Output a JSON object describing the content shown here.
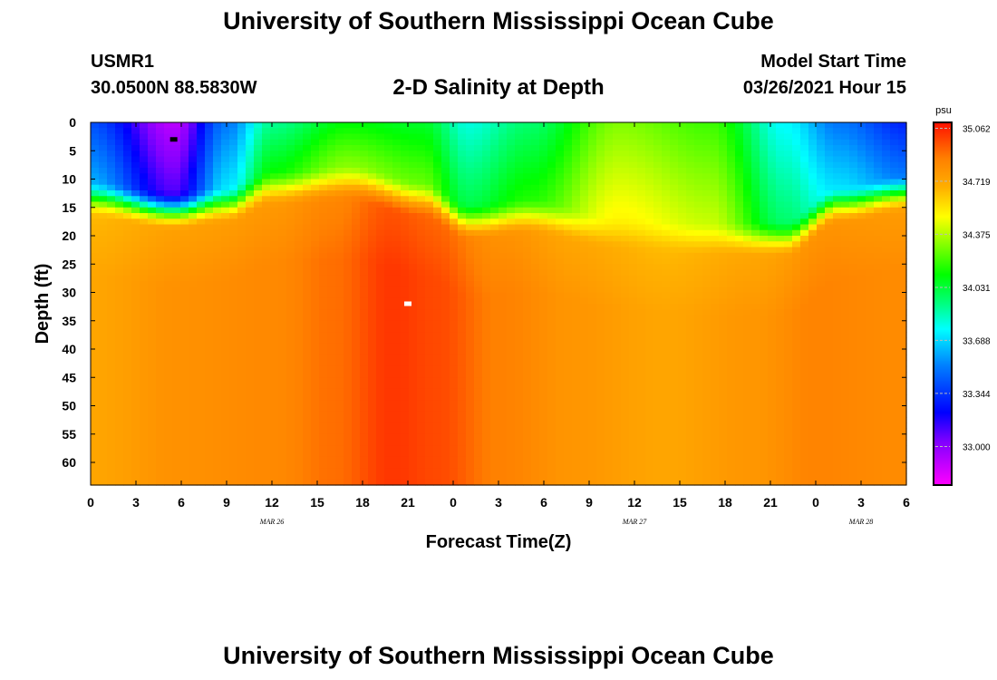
{
  "header": {
    "title": "University of Southern Mississippi Ocean Cube",
    "station_id": "USMR1",
    "station_position": "30.0500N 88.5830W",
    "plot_title": "2-D Salinity at Depth",
    "start_label": "Model Start Time",
    "start_value": "03/26/2021 Hour 15"
  },
  "footer": {
    "title": "University of Southern Mississippi Ocean Cube"
  },
  "chart_data": {
    "type": "heatmap",
    "title": "2-D Salinity at Depth",
    "xlabel": "Forecast Time(Z)",
    "ylabel": "Depth (ft)",
    "x_hours_range": [
      0,
      54
    ],
    "x_tick_labels": [
      "0",
      "3",
      "6",
      "9",
      "12",
      "15",
      "18",
      "21",
      "0",
      "3",
      "6",
      "9",
      "12",
      "15",
      "18",
      "21",
      "0",
      "3",
      "6"
    ],
    "day_labels": [
      {
        "text": "MAR 26",
        "hour": 12
      },
      {
        "text": "MAR 27",
        "hour": 36
      },
      {
        "text": "MAR 28",
        "hour": 51
      }
    ],
    "y_range_ft": [
      0,
      64
    ],
    "y_ticks": [
      0,
      5,
      10,
      15,
      20,
      25,
      30,
      35,
      40,
      45,
      50,
      55,
      60
    ],
    "colorbar": {
      "unit": "psu",
      "range": [
        32.75,
        35.1
      ],
      "labels": [
        "35.062",
        "34.719",
        "34.375",
        "34.031",
        "33.688",
        "33.344",
        "33.000"
      ],
      "colors": [
        "#ff00ff",
        "#0000ff",
        "#00ffff",
        "#00ff00",
        "#ffff00",
        "#ffa500",
        "#ff0000"
      ]
    },
    "surface_layer": [
      {
        "hour": 0,
        "depth_ft": 10,
        "psu": 33.45
      },
      {
        "hour": 5.5,
        "depth_ft": 12,
        "psu": 32.95
      },
      {
        "hour": 9,
        "depth_ft": 11,
        "psu": 33.55
      },
      {
        "hour": 12,
        "depth_ft": 8,
        "psu": 33.95
      },
      {
        "hour": 17,
        "depth_ft": 7,
        "psu": 34.15
      },
      {
        "hour": 22,
        "depth_ft": 10,
        "psu": 34.1
      },
      {
        "hour": 25,
        "depth_ft": 14,
        "psu": 33.85
      },
      {
        "hour": 29,
        "depth_ft": 13,
        "psu": 34.0
      },
      {
        "hour": 35,
        "depth_ft": 16,
        "psu": 34.35
      },
      {
        "hour": 41,
        "depth_ft": 17,
        "psu": 34.25
      },
      {
        "hour": 46,
        "depth_ft": 17,
        "psu": 33.8
      },
      {
        "hour": 49.5,
        "depth_ft": 11,
        "psu": 33.55
      },
      {
        "hour": 54,
        "depth_ft": 9,
        "psu": 33.35
      }
    ],
    "deep_layer_psu": [
      {
        "hour": 0,
        "psu": 34.72
      },
      {
        "hour": 6,
        "psu": 34.8
      },
      {
        "hour": 12,
        "psu": 34.83
      },
      {
        "hour": 16,
        "psu": 34.9
      },
      {
        "hour": 20,
        "psu": 35.02
      },
      {
        "hour": 23,
        "psu": 34.98
      },
      {
        "hour": 27,
        "psu": 34.86
      },
      {
        "hour": 32,
        "psu": 34.78
      },
      {
        "hour": 38,
        "psu": 34.72
      },
      {
        "hour": 44,
        "psu": 34.78
      },
      {
        "hour": 48,
        "psu": 34.85
      },
      {
        "hour": 54,
        "psu": 34.82
      }
    ],
    "markers": [
      {
        "kind": "minimum",
        "hour": 5.5,
        "depth_ft": 3,
        "color": "#000000"
      },
      {
        "kind": "maximum",
        "hour": 21,
        "depth_ft": 32,
        "color": "#ffffff"
      }
    ]
  }
}
